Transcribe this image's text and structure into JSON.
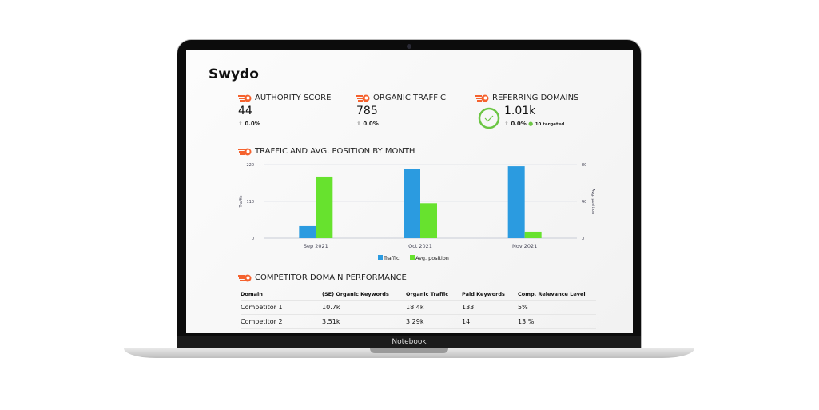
{
  "device_label": "Notebook",
  "brand": {
    "logo_text": "Swydo"
  },
  "kpis": [
    {
      "title": "AUTHORITY SCORE",
      "value": "44",
      "change": "0.0%"
    },
    {
      "title": "ORGANIC TRAFFIC",
      "value": "785",
      "change": "0.0%"
    },
    {
      "title": "REFERRING DOMAINS",
      "value": "1.01k",
      "change": "0.0%",
      "targeted": "10 targeted"
    }
  ],
  "chart_section_title": "TRAFFIC AND AVG. POSITION BY MONTH",
  "chart_data": {
    "type": "bar",
    "title": "TRAFFIC AND AVG. POSITION BY MONTH",
    "categories": [
      "Sep 2021",
      "Oct 2021",
      "Nov 2021"
    ],
    "series": [
      {
        "name": "Traffic",
        "axis": "left",
        "color": "#2b9be0",
        "values": [
          36,
          208,
          215
        ]
      },
      {
        "name": "Avg. position",
        "axis": "right",
        "color": "#67e22e",
        "values": [
          67,
          38,
          7
        ]
      }
    ],
    "ylabel": "Traffic",
    "y2label": "Avg. position",
    "ylim": [
      0,
      220
    ],
    "y2lim": [
      0,
      80
    ],
    "yticks": [
      "0",
      "110",
      "220"
    ],
    "y2ticks": [
      "0",
      "40",
      "80"
    ],
    "legend": "bottom",
    "grid": true
  },
  "table_section_title": "COMPETITOR DOMAIN PERFORMANCE",
  "table": {
    "headers": [
      "Domain",
      "(SE) Organic Keywords",
      "Organic Traffic",
      "Paid Keywords",
      "Comp. Relevance Level"
    ],
    "rows": [
      [
        "Competitor 1",
        "10.7k",
        "18.4k",
        "133",
        "5%"
      ],
      [
        "Competitor 2",
        "3.51k",
        "3.29k",
        "14",
        "13 %"
      ]
    ]
  }
}
